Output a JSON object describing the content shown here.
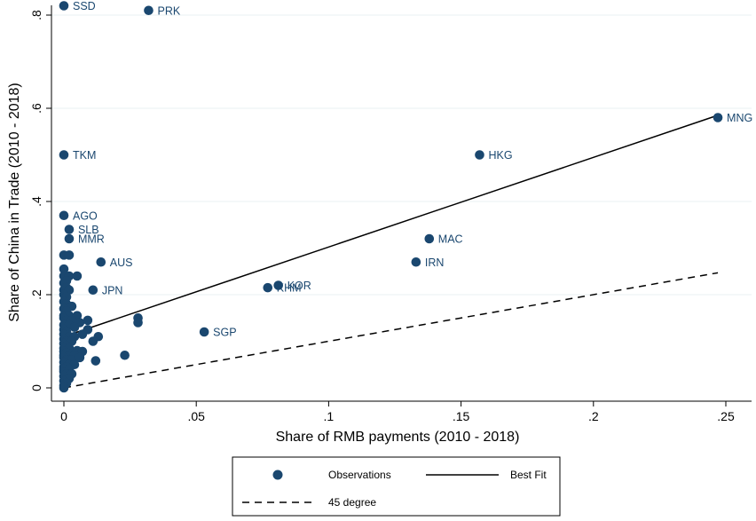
{
  "chart_data": {
    "type": "scatter",
    "xlabel": "Share of RMB payments (2010 - 2018)",
    "ylabel": "Share of China in Trade (2010 - 2018)",
    "xlim": [
      -0.01,
      0.255
    ],
    "ylim": [
      -0.02,
      0.84
    ],
    "xticks": [
      {
        "value": 0,
        "label": "0"
      },
      {
        "value": 0.05,
        "label": ".05"
      },
      {
        "value": 0.1,
        "label": ".1"
      },
      {
        "value": 0.15,
        "label": ".15"
      },
      {
        "value": 0.2,
        "label": ".2"
      },
      {
        "value": 0.25,
        "label": ".25"
      }
    ],
    "yticks": [
      {
        "value": 0,
        "label": "0"
      },
      {
        "value": 0.2,
        "label": ".2"
      },
      {
        "value": 0.4,
        "label": ".4"
      },
      {
        "value": 0.6,
        "label": ".6"
      },
      {
        "value": 0.8,
        "label": ".8"
      }
    ],
    "grid": "horizontal",
    "marker_color": "#1a476f",
    "series": [
      {
        "name": "Observations",
        "labeled_points": [
          {
            "label": "SSD",
            "x": 0.0,
            "y": 0.82
          },
          {
            "label": "PRK",
            "x": 0.032,
            "y": 0.81
          },
          {
            "label": "MNG",
            "x": 0.247,
            "y": 0.58
          },
          {
            "label": "TKM",
            "x": 0.0,
            "y": 0.5
          },
          {
            "label": "HKG",
            "x": 0.157,
            "y": 0.5
          },
          {
            "label": "AGO",
            "x": 0.0,
            "y": 0.37
          },
          {
            "label": "SLB",
            "x": 0.002,
            "y": 0.34
          },
          {
            "label": "MMR",
            "x": 0.002,
            "y": 0.32
          },
          {
            "label": "MAC",
            "x": 0.138,
            "y": 0.32
          },
          {
            "label": "AUS",
            "x": 0.014,
            "y": 0.27
          },
          {
            "label": "IRN",
            "x": 0.133,
            "y": 0.27
          },
          {
            "label": "KOR",
            "x": 0.081,
            "y": 0.22
          },
          {
            "label": "KHM",
            "x": 0.077,
            "y": 0.215
          },
          {
            "label": "JPN",
            "x": 0.011,
            "y": 0.21
          },
          {
            "label": "SGP",
            "x": 0.053,
            "y": 0.12
          }
        ],
        "points": [
          [
            0.0,
            0.285
          ],
          [
            0.002,
            0.285
          ],
          [
            0.0,
            0.255
          ],
          [
            0.0,
            0.24
          ],
          [
            0.002,
            0.24
          ],
          [
            0.005,
            0.24
          ],
          [
            0.0,
            0.225
          ],
          [
            0.001,
            0.23
          ],
          [
            0.0,
            0.21
          ],
          [
            0.001,
            0.215
          ],
          [
            0.002,
            0.21
          ],
          [
            0.0,
            0.2
          ],
          [
            0.001,
            0.195
          ],
          [
            0.0,
            0.185
          ],
          [
            0.001,
            0.18
          ],
          [
            0.003,
            0.175
          ],
          [
            0.0,
            0.17
          ],
          [
            0.001,
            0.165
          ],
          [
            0.0,
            0.155
          ],
          [
            0.002,
            0.155
          ],
          [
            0.005,
            0.155
          ],
          [
            0.0,
            0.15
          ],
          [
            0.001,
            0.145
          ],
          [
            0.003,
            0.145
          ],
          [
            0.006,
            0.14
          ],
          [
            0.009,
            0.145
          ],
          [
            0.028,
            0.15
          ],
          [
            0.028,
            0.14
          ],
          [
            0.0,
            0.135
          ],
          [
            0.002,
            0.135
          ],
          [
            0.004,
            0.13
          ],
          [
            0.0,
            0.125
          ],
          [
            0.001,
            0.12
          ],
          [
            0.009,
            0.125
          ],
          [
            0.0,
            0.115
          ],
          [
            0.002,
            0.11
          ],
          [
            0.004,
            0.11
          ],
          [
            0.007,
            0.115
          ],
          [
            0.013,
            0.11
          ],
          [
            0.0,
            0.105
          ],
          [
            0.001,
            0.1
          ],
          [
            0.003,
            0.1
          ],
          [
            0.011,
            0.1
          ],
          [
            0.0,
            0.095
          ],
          [
            0.001,
            0.09
          ],
          [
            0.0,
            0.085
          ],
          [
            0.002,
            0.085
          ],
          [
            0.005,
            0.08
          ],
          [
            0.0,
            0.078
          ],
          [
            0.001,
            0.075
          ],
          [
            0.007,
            0.078
          ],
          [
            0.0,
            0.07
          ],
          [
            0.002,
            0.07
          ],
          [
            0.004,
            0.07
          ],
          [
            0.023,
            0.07
          ],
          [
            0.0,
            0.065
          ],
          [
            0.001,
            0.06
          ],
          [
            0.003,
            0.06
          ],
          [
            0.006,
            0.065
          ],
          [
            0.0,
            0.055
          ],
          [
            0.002,
            0.05
          ],
          [
            0.004,
            0.05
          ],
          [
            0.012,
            0.058
          ],
          [
            0.0,
            0.045
          ],
          [
            0.001,
            0.045
          ],
          [
            0.0,
            0.04
          ],
          [
            0.002,
            0.04
          ],
          [
            0.0,
            0.035
          ],
          [
            0.001,
            0.03
          ],
          [
            0.003,
            0.03
          ],
          [
            0.0,
            0.025
          ],
          [
            0.002,
            0.02
          ],
          [
            0.0,
            0.015
          ],
          [
            0.001,
            0.01
          ],
          [
            0.0,
            0.005
          ],
          [
            0.0,
            0.0
          ]
        ]
      },
      {
        "name": "Best Fit",
        "line": [
          [
            0.0,
            0.11
          ],
          [
            0.247,
            0.585
          ]
        ],
        "style": "solid"
      },
      {
        "name": "45 degree",
        "line": [
          [
            0.0,
            0.0
          ],
          [
            0.247,
            0.247
          ]
        ],
        "style": "dashed"
      }
    ],
    "legend": {
      "position": "bottom-center",
      "items": [
        {
          "label": "Observations",
          "kind": "marker"
        },
        {
          "label": "Best Fit",
          "kind": "solid-line"
        },
        {
          "label": "45 degree",
          "kind": "dashed-line"
        }
      ]
    }
  }
}
